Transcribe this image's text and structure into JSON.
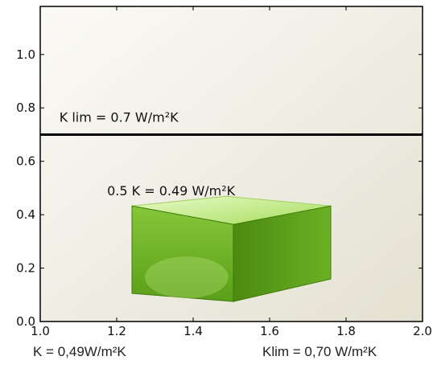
{
  "chart_data": {
    "type": "line",
    "xlim": [
      1.0,
      2.0
    ],
    "ylim": [
      0.0,
      1.18
    ],
    "x_ticks": [
      1.0,
      1.2,
      1.4,
      1.6,
      1.8,
      2.0
    ],
    "y_ticks": [
      0.0,
      0.2,
      0.4,
      0.6,
      0.8,
      1.0
    ],
    "x_tick_labels": [
      "1.0",
      "1.2",
      "1.4",
      "1.6",
      "1.8",
      "2.0"
    ],
    "y_tick_labels": [
      "0.0",
      "0.2",
      "0.4",
      "0.6",
      "0.8",
      "1.0"
    ],
    "grid": false,
    "reference_line": {
      "y": 0.7,
      "label": "K lim = 0.7 W/m²K",
      "color": "#000000"
    },
    "box": {
      "value": 0.49,
      "label": "0.5 K = 0.49 W/m²K",
      "x_range": [
        1.24,
        1.76
      ],
      "colors": {
        "top": "#c4ee86",
        "front": "#62a81c",
        "side": "#4f8f12"
      }
    },
    "colors": {
      "plot_background": "#eceadf",
      "axes": "#000000"
    }
  },
  "captions": {
    "left": "K = 0,49W/m²K",
    "right": "Klim = 0,70 W/m²K"
  }
}
